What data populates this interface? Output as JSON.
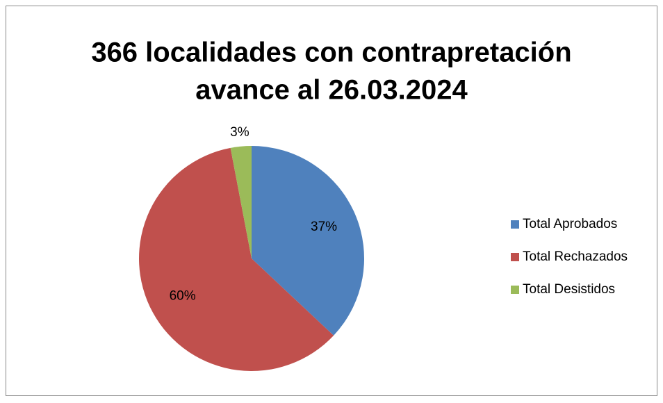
{
  "chart_data": {
    "type": "pie",
    "title": [
      "366 localidades con contrapretación",
      "avance al 26.03.2024"
    ],
    "categories": [
      "Total Aprobados",
      "Total Rechazados",
      "Total Desistidos"
    ],
    "values": [
      37,
      60,
      3
    ],
    "value_labels": [
      "37%",
      "60%",
      "3%"
    ],
    "colors": [
      "#4f81bd",
      "#c0504d",
      "#9bbb59"
    ],
    "legend": "right"
  }
}
